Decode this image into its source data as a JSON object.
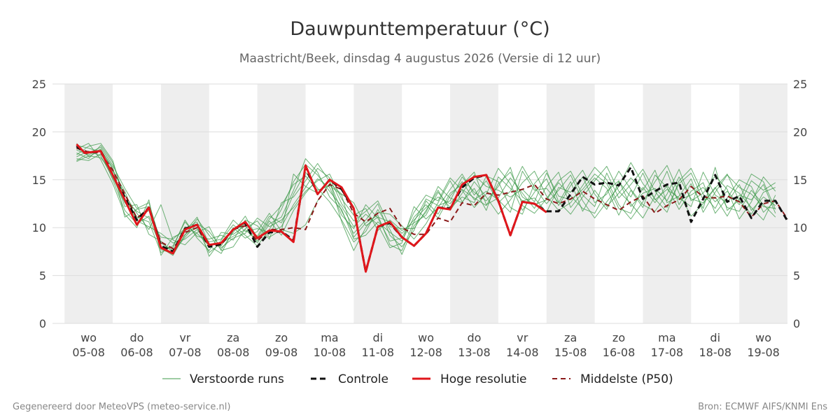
{
  "chart_data": {
    "type": "line",
    "title": "Dauwpunttemperatuur (°C)",
    "subtitle": "Maastricht/Beek, dinsdag  4 augustus 2026 (Versie di 12 uur)",
    "ylim": [
      0,
      25
    ],
    "yticks": [
      0,
      5,
      10,
      15,
      20,
      25
    ],
    "x_range_days": [
      -0.75,
      14.5
    ],
    "day_labels": [
      {
        "day": "wo",
        "date": "05-08"
      },
      {
        "day": "do",
        "date": "06-08"
      },
      {
        "day": "vr",
        "date": "07-08"
      },
      {
        "day": "za",
        "date": "08-08"
      },
      {
        "day": "zo",
        "date": "09-08"
      },
      {
        "day": "ma",
        "date": "10-08"
      },
      {
        "day": "di",
        "date": "11-08"
      },
      {
        "day": "wo",
        "date": "12-08"
      },
      {
        "day": "do",
        "date": "13-08"
      },
      {
        "day": "vr",
        "date": "14-08"
      },
      {
        "day": "za",
        "date": "15-08"
      },
      {
        "day": "zo",
        "date": "16-08"
      },
      {
        "day": "ma",
        "date": "17-08"
      },
      {
        "day": "di",
        "date": "18-08"
      },
      {
        "day": "wo",
        "date": "19-08"
      }
    ],
    "shaded_days": [
      0,
      2,
      4,
      6,
      8,
      10,
      12,
      14
    ],
    "grid": true,
    "legend_position": "bottom",
    "series": [
      {
        "name": "Controle",
        "color": "#111111",
        "style": "dashed",
        "x": [
          -0.25,
          -0.08,
          0.25,
          0.5,
          1,
          1.25,
          1.5,
          1.75,
          2,
          2.25,
          2.5,
          2.75,
          3,
          3.25,
          3.5,
          3.75,
          4,
          4.25,
          4.5,
          4.75,
          5,
          5.25,
          5.5,
          5.75,
          6,
          6.25,
          6.5,
          6.75,
          7,
          7.25,
          7.5,
          7.75,
          8,
          8.25,
          8.5,
          8.75,
          9,
          9.25,
          9.5,
          9.75,
          10,
          10.25,
          10.5,
          10.75,
          11,
          11.25,
          11.5,
          11.75,
          12,
          12.25,
          12.5,
          12.75,
          13,
          13.25,
          13.5,
          13.75,
          14,
          14.25,
          14.5
        ],
        "y": [
          18.5,
          17.8,
          18.0,
          15.5,
          10.8,
          12.1,
          8.1,
          7.5,
          9.9,
          10.3,
          8.0,
          8.3,
          9.8,
          10.5,
          8.0,
          9.5,
          9.6,
          8.7,
          16.3,
          13.5,
          15.0,
          14.0,
          12.0,
          5.4,
          10.1,
          10.5,
          9.0,
          8.1,
          9.4,
          12.1,
          12.0,
          14.2,
          15.2,
          15.5,
          12.8,
          9.2,
          12.7,
          12.5,
          11.7,
          11.7,
          13.5,
          15.3,
          14.5,
          14.7,
          14.4,
          16.3,
          13.0,
          13.8,
          14.5,
          14.7,
          10.6,
          13.0,
          15.5,
          12.7,
          13.3,
          11.0,
          12.8,
          12.8,
          10.7
        ]
      },
      {
        "name": "Hoge resolutie",
        "color": "#e0161b",
        "style": "solid",
        "x": [
          -0.25,
          -0.08,
          0.25,
          0.5,
          1,
          1.25,
          1.5,
          1.75,
          2,
          2.25,
          2.5,
          2.75,
          3,
          3.25,
          3.5,
          3.75,
          4,
          4.25,
          4.5,
          4.75,
          5,
          5.25,
          5.5,
          5.75,
          6,
          6.25,
          6.5,
          6.75,
          7,
          7.25,
          7.5,
          7.75,
          8,
          8.25,
          8.5,
          8.75,
          9,
          9.25,
          9.5
        ],
        "y": [
          18.7,
          17.8,
          18.0,
          15.5,
          10.3,
          12.1,
          7.9,
          7.3,
          9.8,
          10.3,
          8.2,
          8.4,
          9.8,
          10.6,
          8.9,
          9.7,
          9.6,
          8.5,
          16.5,
          13.5,
          15.0,
          14.2,
          12.0,
          5.4,
          10.1,
          10.6,
          9.0,
          8.1,
          9.4,
          12.1,
          11.9,
          14.5,
          15.3,
          15.5,
          12.8,
          9.2,
          12.7,
          12.5,
          11.6
        ]
      },
      {
        "name": "Middelste (P50)",
        "color": "#8b1a1a",
        "style": "dashed",
        "x": [
          -0.25,
          0,
          0.25,
          0.5,
          1,
          1.25,
          1.5,
          1.75,
          2,
          2.25,
          2.5,
          2.75,
          3,
          3.25,
          3.5,
          3.75,
          4,
          4.25,
          4.5,
          4.75,
          5,
          5.25,
          5.5,
          5.75,
          6,
          6.25,
          6.5,
          6.75,
          7,
          7.25,
          7.5,
          7.75,
          8,
          8.25,
          8.5,
          8.75,
          9,
          9.25,
          9.5,
          9.75,
          10,
          10.25,
          10.5,
          10.75,
          11,
          11.25,
          11.5,
          11.75,
          12,
          12.25,
          12.5,
          12.75,
          13,
          13.25,
          13.5,
          13.75,
          14,
          14.25,
          14.5
        ],
        "y": [
          18.3,
          17.9,
          17.8,
          16.0,
          11.0,
          12.0,
          8.5,
          7.8,
          9.5,
          10.0,
          8.0,
          8.2,
          9.8,
          10.2,
          8.6,
          9.8,
          9.8,
          10.0,
          9.8,
          12.8,
          14.5,
          14.0,
          11.5,
          10.6,
          11.5,
          12.0,
          10.0,
          9.3,
          9.3,
          11.0,
          10.6,
          12.6,
          12.3,
          13.6,
          13.4,
          13.7,
          14.0,
          14.5,
          13.0,
          12.5,
          13.0,
          13.8,
          13.0,
          12.4,
          11.8,
          12.7,
          13.3,
          11.5,
          12.3,
          12.9,
          14.3,
          13.2,
          13.1,
          13.3,
          12.7,
          11.1,
          12.5,
          12.8,
          10.9
        ]
      },
      {
        "name": "Verstoorde runs",
        "color": "#3d9a4a",
        "style": "thin",
        "x_step_days": 0.25,
        "x_start": -0.25,
        "members": [
          [
            18.1,
            17.6,
            18.2,
            16.1,
            13.4,
            11.5,
            9.8,
            12.4,
            8.7,
            8.2,
            9.5,
            10.1,
            7.6,
            8.0,
            9.9,
            10.7,
            9.0,
            9.8,
            9.4,
            10.3,
            12.8,
            14.6,
            13.5,
            12.6,
            10.2,
            11.1,
            10.6,
            9.4,
            10.8,
            12.1,
            13.2,
            12.5,
            14.0,
            13.1,
            12.3,
            14.6,
            15.8,
            13.2,
            12.4,
            12.9,
            14.7,
            13.3,
            12.0,
            11.5,
            13.8,
            14.9,
            12.2,
            13.6,
            14.1,
            12.8,
            15.3,
            13.0,
            12.6,
            14.2,
            12.1,
            11.7,
            13.9,
            12.4,
            11.1
          ],
          [
            17.4,
            18.0,
            17.5,
            15.2,
            12.6,
            10.9,
            11.8,
            7.9,
            7.1,
            9.3,
            10.0,
            7.4,
            8.4,
            9.1,
            9.8,
            8.6,
            10.7,
            9.2,
            11.8,
            13.6,
            15.1,
            14.2,
            11.3,
            9.9,
            12.4,
            11.0,
            8.6,
            8.9,
            11.6,
            13.4,
            12.8,
            15.2,
            13.9,
            12.1,
            13.5,
            16.2,
            14.6,
            11.8,
            13.7,
            15.1,
            12.3,
            14.4,
            16.0,
            13.5,
            11.9,
            14.8,
            13.2,
            15.7,
            12.9,
            14.0,
            13.1,
            12.2,
            15.8,
            13.4,
            12.6,
            14.5,
            11.8,
            13.2,
            12.3
          ],
          [
            17.0,
            17.8,
            18.4,
            16.5,
            14.1,
            12.0,
            12.6,
            8.4,
            7.6,
            10.1,
            9.4,
            8.1,
            7.3,
            9.7,
            10.4,
            9.1,
            11.2,
            10.5,
            13.5,
            15.8,
            14.1,
            12.7,
            10.8,
            8.5,
            9.6,
            11.9,
            9.8,
            7.2,
            10.2,
            11.6,
            14.3,
            13.1,
            12.6,
            14.8,
            13.2,
            11.4,
            12.9,
            14.7,
            15.9,
            13.3,
            11.8,
            12.6,
            14.4,
            16.3,
            15.0,
            12.4,
            10.9,
            12.7,
            14.8,
            16.5,
            13.6,
            11.2,
            12.5,
            14.1,
            15.6,
            12.8,
            11.4,
            13.7,
            14.2
          ],
          [
            18.6,
            18.3,
            17.9,
            15.0,
            11.8,
            10.4,
            11.2,
            9.0,
            8.8,
            9.9,
            10.6,
            7.0,
            8.7,
            10.3,
            9.2,
            8.1,
            9.8,
            11.9,
            14.8,
            16.6,
            15.5,
            13.8,
            12.2,
            10.1,
            11.4,
            10.3,
            7.9,
            8.4,
            12.2,
            10.9,
            12.1,
            14.0,
            15.6,
            13.4,
            14.9,
            12.6,
            13.8,
            16.4,
            14.2,
            12.5,
            13.9,
            15.5,
            12.8,
            11.0,
            12.7,
            14.3,
            16.8,
            14.6,
            13.0,
            11.6,
            14.9,
            16.2,
            13.5,
            12.0,
            14.4,
            13.6,
            12.1,
            10.8,
            13.4
          ],
          [
            17.8,
            17.2,
            18.6,
            16.8,
            13.0,
            11.1,
            10.6,
            7.4,
            8.1,
            10.6,
            9.1,
            8.8,
            9.2,
            8.7,
            10.8,
            10.2,
            8.8,
            12.6,
            13.2,
            14.9,
            16.7,
            14.8,
            11.7,
            9.4,
            10.8,
            12.5,
            9.2,
            8.0,
            9.7,
            12.8,
            11.4,
            13.6,
            14.5,
            15.8,
            12.4,
            13.1,
            15.2,
            13.6,
            12.0,
            14.3,
            15.8,
            12.1,
            13.7,
            15.2,
            14.1,
            11.3,
            13.9,
            12.1,
            15.5,
            14.2,
            11.9,
            13.8,
            14.7,
            11.5,
            13.1,
            15.0,
            14.3,
            11.6,
            12.8
          ],
          [
            16.9,
            17.5,
            17.3,
            15.7,
            12.2,
            12.4,
            9.3,
            8.6,
            7.4,
            9.0,
            10.4,
            9.6,
            7.9,
            8.9,
            9.4,
            11.0,
            10.1,
            10.8,
            12.1,
            13.8,
            14.9,
            15.6,
            13.0,
            11.3,
            12.0,
            9.7,
            10.8,
            9.7,
            10.5,
            11.3,
            13.7,
            12.1,
            13.2,
            12.6,
            15.4,
            14.8,
            12.1,
            11.4,
            14.6,
            16.0,
            12.7,
            11.4,
            13.2,
            14.9,
            16.4,
            13.8,
            12.5,
            11.0,
            13.3,
            15.9,
            12.4,
            14.6,
            12.0,
            16.3,
            11.8,
            12.9,
            15.6,
            14.8,
            11.9
          ],
          [
            18.2,
            18.8,
            17.1,
            14.6,
            11.4,
            10.0,
            12.9,
            7.1,
            9.0,
            9.6,
            11.1,
            8.3,
            8.1,
            10.0,
            8.9,
            9.6,
            11.5,
            9.6,
            15.6,
            14.3,
            13.6,
            14.9,
            10.6,
            7.6,
            10.0,
            11.6,
            11.4,
            10.2,
            8.8,
            10.4,
            12.6,
            14.9,
            12.7,
            14.1,
            11.8,
            15.3,
            14.1,
            12.8,
            13.1,
            11.6,
            14.2,
            13.7,
            15.3,
            12.6,
            13.5,
            15.9,
            14.0,
            12.4,
            11.7,
            13.5,
            16.1,
            12.8,
            13.6,
            15.4,
            14.0,
            10.9,
            12.7,
            15.3,
            13.8
          ],
          [
            17.6,
            18.5,
            18.8,
            17.0,
            12.9,
            11.7,
            11.0,
            8.0,
            7.9,
            10.8,
            8.9,
            7.6,
            9.5,
            9.3,
            10.2,
            8.4,
            10.4,
            11.1,
            13.9,
            17.2,
            15.8,
            13.2,
            11.9,
            8.8,
            9.2,
            10.6,
            9.5,
            8.6,
            11.1,
            12.4,
            11.0,
            13.3,
            14.8,
            12.9,
            13.8,
            12.9,
            11.6,
            15.9,
            13.9,
            14.1,
            12.6,
            14.8,
            11.7,
            13.9,
            12.2,
            13.6,
            15.2,
            13.9,
            16.0,
            12.6,
            13.3,
            15.1,
            11.6,
            13.7,
            15.5,
            14.2,
            13.5,
            12.2,
            12.0
          ],
          [
            17.2,
            17.0,
            17.7,
            15.9,
            13.8,
            10.7,
            10.1,
            9.4,
            8.4,
            8.8,
            9.8,
            8.5,
            8.8,
            10.8,
            9.6,
            9.9,
            9.5,
            10.1,
            12.4,
            14.2,
            16.2,
            15.2,
            12.5,
            10.7,
            11.7,
            12.8,
            10.1,
            9.9,
            9.9,
            11.8,
            13.9,
            11.8,
            13.6,
            15.5,
            14.3,
            13.9,
            13.2,
            14.0,
            12.7,
            15.7,
            13.3,
            12.9,
            14.0,
            15.6,
            14.6,
            12.0,
            11.5,
            14.2,
            12.6,
            14.4,
            12.9,
            13.4,
            14.2,
            12.7,
            13.8,
            12.4,
            14.9,
            13.9,
            14.7
          ],
          [
            18.8,
            17.4,
            18.1,
            16.3,
            11.1,
            11.9,
            12.2,
            7.7,
            7.3,
            9.2,
            10.9,
            9.2,
            7.7,
            9.5,
            11.2,
            8.9,
            10.9,
            12.3,
            14.5,
            15.4,
            13.9,
            14.4,
            13.4,
            9.0,
            10.5,
            11.3,
            8.2,
            7.6,
            10.6,
            13.0,
            12.3,
            12.8,
            15.3,
            13.7,
            12.8,
            14.3,
            16.3,
            12.3,
            11.5,
            13.0,
            14.9,
            15.9,
            13.4,
            12.2,
            15.7,
            13.1,
            14.5,
            16.1,
            13.8,
            12.1,
            14.6,
            15.7,
            12.9,
            13.2,
            11.2,
            13.4,
            12.9,
            14.5,
            11.5
          ]
        ]
      }
    ]
  },
  "legend": {
    "items": [
      "Verstoorde runs",
      "Controle",
      "Hoge resolutie",
      "Middelste (P50)"
    ]
  },
  "footer": {
    "left": "Gegenereerd door MeteoVPS (meteo-service.nl)",
    "right": "Bron: ECMWF AIFS/KNMI Ens"
  },
  "colors": {
    "shade": "#eeeeee",
    "grid": "#dddddd",
    "ensemble": "#3d9a4a"
  }
}
